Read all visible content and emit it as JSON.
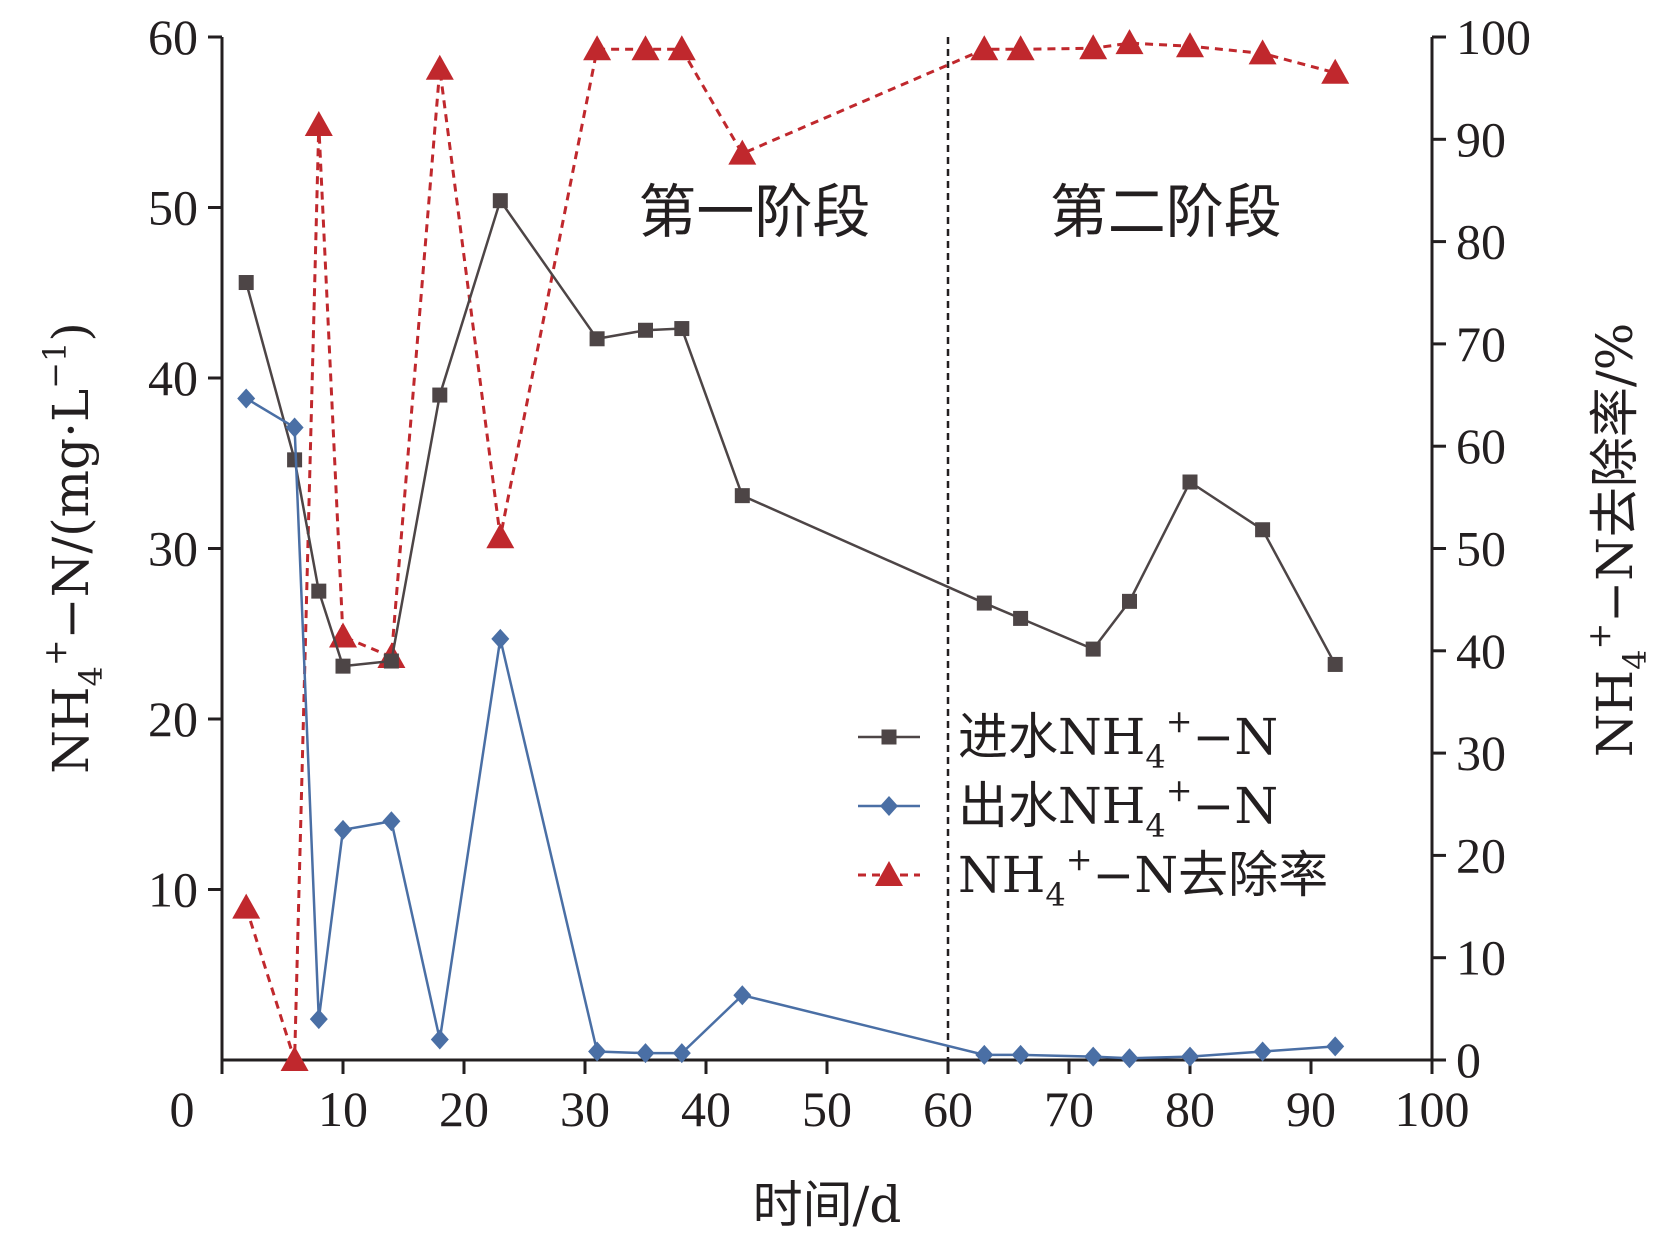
{
  "chart_data": {
    "type": "line",
    "xlabel": "时间/d",
    "ylabel_left": {
      "text": "NH4+−N/(mg·L−1)",
      "main": "NH",
      "sub": "4",
      "sup": "+",
      "rest": "−N/(mg·L",
      "sup2": "−1",
      "end": ")"
    },
    "ylabel_right": {
      "text": "NH4+−N去除率/%",
      "main": "NH",
      "sub": "4",
      "sup": "+",
      "rest": "−N去除率/%"
    },
    "xlim": [
      0,
      100
    ],
    "ylim_left": [
      0,
      60
    ],
    "ylim_right": [
      0,
      100
    ],
    "x_ticks": [
      "0",
      "10",
      "20",
      "30",
      "40",
      "50",
      "60",
      "70",
      "80",
      "90",
      "100"
    ],
    "y_ticks_left": [
      "0",
      "10",
      "20",
      "30",
      "40",
      "50",
      "60"
    ],
    "y_ticks_right": [
      "0",
      "10",
      "20",
      "30",
      "40",
      "50",
      "60",
      "70",
      "80",
      "90",
      "100"
    ],
    "phase_divider_x": 60,
    "phases": [
      {
        "label": "第一阶段",
        "x_center": 44
      },
      {
        "label": "第二阶段",
        "x_center": 78
      }
    ],
    "series": [
      {
        "name": "进水NH4+−N",
        "legend": {
          "pre": "进水NH",
          "sub": "4",
          "sup": "+",
          "post": "−N"
        },
        "axis": "left",
        "color": "#4d4546",
        "marker": "square",
        "dashed": false,
        "x": [
          2,
          6,
          8,
          10,
          14,
          18,
          23,
          31,
          35,
          38,
          43,
          63,
          66,
          72,
          75,
          80,
          86,
          92
        ],
        "y": [
          45.6,
          35.2,
          27.5,
          23.1,
          23.4,
          39.0,
          50.4,
          42.3,
          42.8,
          42.9,
          33.1,
          26.8,
          25.9,
          24.1,
          26.9,
          33.9,
          31.1,
          23.2
        ]
      },
      {
        "name": "出水NH4+−N",
        "legend": {
          "pre": "出水NH",
          "sub": "4",
          "sup": "+",
          "post": "−N"
        },
        "axis": "left",
        "color": "#4a6fa5",
        "marker": "diamond",
        "dashed": false,
        "x": [
          2,
          6,
          8,
          10,
          14,
          18,
          23,
          31,
          35,
          38,
          43,
          63,
          66,
          72,
          75,
          80,
          86,
          92
        ],
        "y": [
          38.8,
          37.1,
          2.4,
          13.5,
          14.0,
          1.2,
          24.7,
          0.5,
          0.4,
          0.4,
          3.8,
          0.3,
          0.3,
          0.2,
          0.1,
          0.2,
          0.5,
          0.8
        ]
      },
      {
        "name": "NH4+−N去除率",
        "legend": {
          "pre": "NH",
          "sub": "4",
          "sup": "+",
          "post": "−N去除率"
        },
        "axis": "right",
        "color": "#c0282d",
        "marker": "triangle",
        "dashed": true,
        "x": [
          2,
          6,
          8,
          10,
          14,
          18,
          23,
          31,
          35,
          38,
          43,
          63,
          66,
          72,
          75,
          80,
          86,
          92
        ],
        "y": [
          14.9,
          0.0,
          91.4,
          41.4,
          39.4,
          96.9,
          51.1,
          98.8,
          98.8,
          98.8,
          88.6,
          98.8,
          98.8,
          98.9,
          99.4,
          99.1,
          98.4,
          96.5
        ]
      }
    ]
  }
}
